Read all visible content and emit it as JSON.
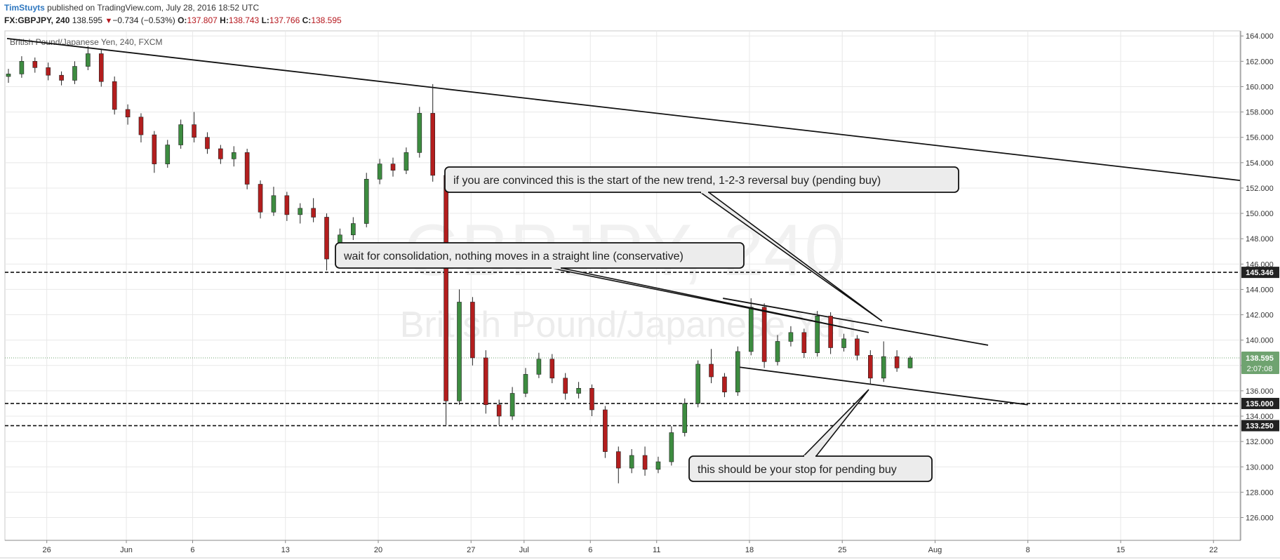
{
  "header": {
    "author": "TimStuyts",
    "published_text": "published on TradingView.com, July 28, 2016 18:52 UTC",
    "symbol": "FX:GBPJPY, 240",
    "last": "138.595",
    "change_arrow": "▼",
    "change": "−0.734 (−0.53%)",
    "o_label": "O:",
    "o_value": "137.807",
    "h_label": "H:",
    "h_value": "138.743",
    "l_label": "L:",
    "l_value": "137.766",
    "c_label": "C:",
    "c_value": "138.595"
  },
  "colors": {
    "up": "#3d8c40",
    "down": "#b31e1e",
    "grid": "#e8e8e8",
    "price_tag": "#6fa370",
    "level_tag": "#222222"
  },
  "chart_data": {
    "type": "candlestick",
    "instrument_label": "British Pound/Japanese Yen, 240, FXCM",
    "watermark_symbol": "GBPJPY, 240",
    "watermark_name": "British Pound/Japanese Yen",
    "x_ticks": [
      "26",
      "Jun",
      "6",
      "13",
      "20",
      "27",
      "Jul",
      "6",
      "11",
      "18",
      "25",
      "Aug",
      "8",
      "15",
      "22"
    ],
    "x_tick_dates": [
      "2016-05-26",
      "2016-06-01",
      "2016-06-06",
      "2016-06-13",
      "2016-06-20",
      "2016-06-27",
      "2016-07-01",
      "2016-07-06",
      "2016-07-11",
      "2016-07-18",
      "2016-07-25",
      "2016-08-01",
      "2016-08-08",
      "2016-08-15",
      "2016-08-22"
    ],
    "x_range": [
      "2016-05-23",
      "2016-08-24"
    ],
    "y_ticks": [
      "164.000",
      "162.000",
      "160.000",
      "158.000",
      "156.000",
      "154.000",
      "152.000",
      "150.000",
      "148.000",
      "146.000",
      "144.000",
      "142.000",
      "140.000",
      "138.000",
      "136.000",
      "134.000",
      "132.000",
      "130.000",
      "128.000",
      "126.000"
    ],
    "ylim": [
      124.2,
      164.4
    ],
    "grid": true,
    "last_price": "138.595",
    "countdown": "2:07:08",
    "horizontal_levels": [
      {
        "value": 145.346,
        "label": "145.346"
      },
      {
        "value": 135.0,
        "label": "135.000"
      },
      {
        "value": 133.25,
        "label": "133.250"
      }
    ],
    "trendlines": [
      {
        "x1": "2016-05-23",
        "y1": 163.8,
        "x2": "2016-08-24",
        "y2": 152.6
      },
      {
        "x1": "2016-07-16",
        "y1": 143.3,
        "x2": "2016-08-05",
        "y2": 139.6
      },
      {
        "x1": "2016-07-17",
        "y1": 137.9,
        "x2": "2016-08-08",
        "y2": 134.9
      }
    ],
    "callouts": [
      {
        "text": "if you are convinced this is the start of the new trend, 1-2-3 reversal buy (pending buy)",
        "anchor_date": "2016-07-28",
        "anchor_price": 141.5
      },
      {
        "text": "wait for consolidation, nothing moves in a straight line (conservative)",
        "anchor_date": "2016-07-27",
        "anchor_price": 140.6
      },
      {
        "text": "this should be your stop for pending buy",
        "anchor_date": "2016-07-27",
        "anchor_price": 136.1
      }
    ],
    "candles": [
      {
        "t": "2016-05-23",
        "o": 160.8,
        "h": 161.4,
        "l": 160.3,
        "c": 161.0
      },
      {
        "t": "2016-05-24",
        "o": 161.0,
        "h": 162.4,
        "l": 160.7,
        "c": 162.0
      },
      {
        "t": "2016-05-25",
        "o": 162.0,
        "h": 162.3,
        "l": 161.1,
        "c": 161.5
      },
      {
        "t": "2016-05-26",
        "o": 161.5,
        "h": 161.9,
        "l": 160.5,
        "c": 160.9
      },
      {
        "t": "2016-05-27",
        "o": 160.9,
        "h": 161.2,
        "l": 160.1,
        "c": 160.5
      },
      {
        "t": "2016-05-29",
        "o": 160.5,
        "h": 162.0,
        "l": 160.2,
        "c": 161.6
      },
      {
        "t": "2016-05-30",
        "o": 161.6,
        "h": 163.2,
        "l": 161.3,
        "c": 162.6
      },
      {
        "t": "2016-05-31",
        "o": 162.6,
        "h": 163.0,
        "l": 160.0,
        "c": 160.4
      },
      {
        "t": "2016-06-01",
        "o": 160.4,
        "h": 160.8,
        "l": 157.8,
        "c": 158.2
      },
      {
        "t": "2016-06-02",
        "o": 158.2,
        "h": 158.6,
        "l": 157.0,
        "c": 157.6
      },
      {
        "t": "2016-06-03",
        "o": 157.6,
        "h": 157.9,
        "l": 155.6,
        "c": 156.2
      },
      {
        "t": "2016-06-05",
        "o": 156.2,
        "h": 156.5,
        "l": 153.2,
        "c": 153.9
      },
      {
        "t": "2016-06-06",
        "o": 153.9,
        "h": 155.8,
        "l": 153.6,
        "c": 155.4
      },
      {
        "t": "2016-06-07",
        "o": 155.4,
        "h": 157.4,
        "l": 155.1,
        "c": 157.0
      },
      {
        "t": "2016-06-08",
        "o": 157.0,
        "h": 158.0,
        "l": 155.6,
        "c": 156.0
      },
      {
        "t": "2016-06-09",
        "o": 156.0,
        "h": 156.4,
        "l": 154.7,
        "c": 155.1
      },
      {
        "t": "2016-06-10",
        "o": 155.1,
        "h": 155.4,
        "l": 153.9,
        "c": 154.3
      },
      {
        "t": "2016-06-12",
        "o": 154.3,
        "h": 155.3,
        "l": 153.7,
        "c": 154.8
      },
      {
        "t": "2016-06-13",
        "o": 154.8,
        "h": 155.1,
        "l": 151.9,
        "c": 152.3
      },
      {
        "t": "2016-06-14",
        "o": 152.3,
        "h": 152.6,
        "l": 149.6,
        "c": 150.1
      },
      {
        "t": "2016-06-15",
        "o": 150.1,
        "h": 152.1,
        "l": 149.8,
        "c": 151.4
      },
      {
        "t": "2016-06-16",
        "o": 151.4,
        "h": 151.7,
        "l": 149.4,
        "c": 149.9
      },
      {
        "t": "2016-06-17",
        "o": 149.9,
        "h": 150.8,
        "l": 149.2,
        "c": 150.4
      },
      {
        "t": "2016-06-19",
        "o": 150.4,
        "h": 151.2,
        "l": 149.3,
        "c": 149.7
      },
      {
        "t": "2016-06-20",
        "o": 149.7,
        "h": 150.0,
        "l": 145.5,
        "c": 146.4
      },
      {
        "t": "2016-06-21",
        "o": 146.4,
        "h": 148.8,
        "l": 146.0,
        "c": 148.3
      },
      {
        "t": "2016-06-22",
        "o": 148.3,
        "h": 149.7,
        "l": 147.9,
        "c": 149.2
      },
      {
        "t": "2016-06-23",
        "o": 149.2,
        "h": 153.2,
        "l": 148.9,
        "c": 152.7
      },
      {
        "t": "2016-06-24",
        "o": 152.7,
        "h": 154.3,
        "l": 152.3,
        "c": 153.9
      },
      {
        "t": "2016-06-25",
        "o": 153.9,
        "h": 154.4,
        "l": 152.9,
        "c": 153.4
      },
      {
        "t": "2016-06-26",
        "o": 153.4,
        "h": 155.2,
        "l": 153.1,
        "c": 154.8
      },
      {
        "t": "2016-06-27",
        "o": 154.8,
        "h": 158.4,
        "l": 154.4,
        "c": 157.9
      },
      {
        "t": "2016-06-28",
        "o": 157.9,
        "h": 160.2,
        "l": 152.5,
        "c": 153.0
      },
      {
        "t": "2016-06-29",
        "o": 153.0,
        "h": 153.3,
        "l": 133.3,
        "c": 135.2
      },
      {
        "t": "2016-06-29",
        "o": 135.2,
        "h": 144.0,
        "l": 134.9,
        "c": 143.0
      },
      {
        "t": "2016-06-30",
        "o": 143.0,
        "h": 143.4,
        "l": 138.0,
        "c": 138.6
      },
      {
        "t": "2016-07-01",
        "o": 138.6,
        "h": 139.2,
        "l": 134.2,
        "c": 134.9
      },
      {
        "t": "2016-07-02",
        "o": 134.9,
        "h": 135.3,
        "l": 133.3,
        "c": 134.0
      },
      {
        "t": "2016-07-03",
        "o": 134.0,
        "h": 136.3,
        "l": 133.7,
        "c": 135.8
      },
      {
        "t": "2016-07-04",
        "o": 135.8,
        "h": 137.8,
        "l": 135.5,
        "c": 137.3
      },
      {
        "t": "2016-07-05",
        "o": 137.3,
        "h": 139.0,
        "l": 137.0,
        "c": 138.5
      },
      {
        "t": "2016-07-06",
        "o": 138.5,
        "h": 138.9,
        "l": 136.6,
        "c": 137.0
      },
      {
        "t": "2016-07-07",
        "o": 137.0,
        "h": 137.4,
        "l": 135.3,
        "c": 135.8
      },
      {
        "t": "2016-07-08",
        "o": 135.8,
        "h": 136.7,
        "l": 135.4,
        "c": 136.2
      },
      {
        "t": "2016-07-09",
        "o": 136.2,
        "h": 136.5,
        "l": 134.0,
        "c": 134.5
      },
      {
        "t": "2016-07-10",
        "o": 134.5,
        "h": 134.8,
        "l": 130.7,
        "c": 131.2
      },
      {
        "t": "2016-07-11",
        "o": 131.2,
        "h": 131.6,
        "l": 128.7,
        "c": 129.9
      },
      {
        "t": "2016-07-12",
        "o": 129.9,
        "h": 131.4,
        "l": 129.5,
        "c": 130.9
      },
      {
        "t": "2016-07-13",
        "o": 130.9,
        "h": 131.6,
        "l": 129.3,
        "c": 129.8
      },
      {
        "t": "2016-07-14",
        "o": 129.8,
        "h": 130.8,
        "l": 129.5,
        "c": 130.4
      },
      {
        "t": "2016-07-15",
        "o": 130.4,
        "h": 133.2,
        "l": 130.1,
        "c": 132.7
      },
      {
        "t": "2016-07-16",
        "o": 132.7,
        "h": 135.4,
        "l": 132.4,
        "c": 135.0
      },
      {
        "t": "2016-07-17",
        "o": 135.0,
        "h": 138.4,
        "l": 134.7,
        "c": 138.1
      },
      {
        "t": "2016-07-18",
        "o": 138.1,
        "h": 139.3,
        "l": 136.6,
        "c": 137.1
      },
      {
        "t": "2016-07-19",
        "o": 137.1,
        "h": 137.4,
        "l": 135.5,
        "c": 135.9
      },
      {
        "t": "2016-07-20",
        "o": 135.9,
        "h": 139.5,
        "l": 135.6,
        "c": 139.1
      },
      {
        "t": "2016-07-21",
        "o": 139.1,
        "h": 143.3,
        "l": 138.8,
        "c": 142.6
      },
      {
        "t": "2016-07-22",
        "o": 142.6,
        "h": 142.9,
        "l": 137.8,
        "c": 138.3
      },
      {
        "t": "2016-07-23",
        "o": 138.3,
        "h": 140.4,
        "l": 138.0,
        "c": 139.9
      },
      {
        "t": "2016-07-24",
        "o": 139.9,
        "h": 141.1,
        "l": 139.5,
        "c": 140.6
      },
      {
        "t": "2016-07-25",
        "o": 140.6,
        "h": 140.9,
        "l": 138.6,
        "c": 139.0
      },
      {
        "t": "2016-07-26",
        "o": 139.0,
        "h": 142.3,
        "l": 138.7,
        "c": 141.9
      },
      {
        "t": "2016-07-27",
        "o": 141.9,
        "h": 142.2,
        "l": 138.9,
        "c": 139.4
      },
      {
        "t": "2016-07-28",
        "o": 139.4,
        "h": 140.5,
        "l": 139.1,
        "c": 140.1
      },
      {
        "t": "2016-07-29",
        "o": 140.1,
        "h": 140.4,
        "l": 138.4,
        "c": 138.8
      },
      {
        "t": "2016-07-30",
        "o": 138.8,
        "h": 139.2,
        "l": 136.5,
        "c": 137.0
      },
      {
        "t": "2016-07-31",
        "o": 137.0,
        "h": 139.9,
        "l": 136.7,
        "c": 138.7
      },
      {
        "t": "2016-08-01",
        "o": 138.7,
        "h": 139.2,
        "l": 137.5,
        "c": 137.8
      },
      {
        "t": "2016-08-02",
        "o": 137.807,
        "h": 138.743,
        "l": 137.766,
        "c": 138.595
      }
    ]
  }
}
